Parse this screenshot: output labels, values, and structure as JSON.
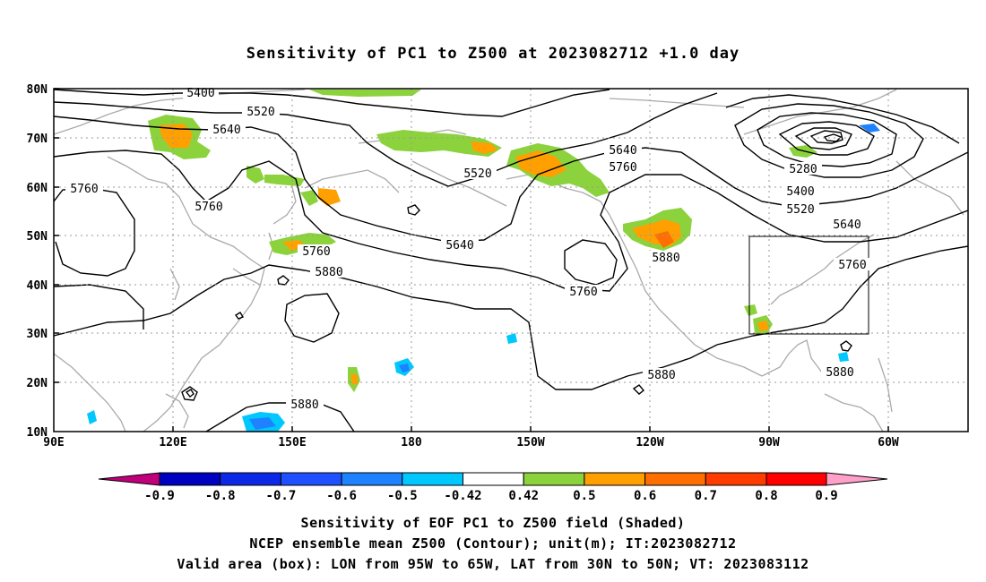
{
  "title": "Sensitivity of PC1 to Z500 at 2023082712 +1.0 day",
  "lat_labels": [
    "80N",
    "70N",
    "60N",
    "50N",
    "40N",
    "30N",
    "20N",
    "10N"
  ],
  "lon_labels": [
    "90E",
    "120E",
    "150E",
    "180",
    "150W",
    "120W",
    "90W",
    "60W"
  ],
  "contour_labels": [
    "5400",
    "5520",
    "5640",
    "5760",
    "5760",
    "5760",
    "5880",
    "5520",
    "5640",
    "5640",
    "5760",
    "5760",
    "5880",
    "5280",
    "5400",
    "5520",
    "5640",
    "5760",
    "5880",
    "5880",
    "5880"
  ],
  "colorbar": {
    "labels": [
      "-0.9",
      "-0.8",
      "-0.7",
      "-0.6",
      "-0.5",
      "-0.42",
      "0.42",
      "0.5",
      "0.6",
      "0.7",
      "0.8",
      "0.9"
    ],
    "colors": [
      "#c0007a",
      "#0000c0",
      "#0a28e6",
      "#1e50ff",
      "#1e82ff",
      "#00c8ff",
      "#ffffff",
      "#8cd23c",
      "#ffa000",
      "#ff6e00",
      "#ff3c00",
      "#ff0000",
      "#ffa0c8"
    ]
  },
  "captions": [
    "Sensitivity of EOF PC1 to Z500 field (Shaded)",
    "NCEP ensemble mean Z500 (Contour); unit(m); IT:2023082712",
    "Valid area (box): LON from 95W to 65W, LAT from 30N to 50N; VT: 2023083112"
  ],
  "valid_box": {
    "lon_min": -95,
    "lon_max": -65,
    "lat_min": 30,
    "lat_max": 50
  }
}
